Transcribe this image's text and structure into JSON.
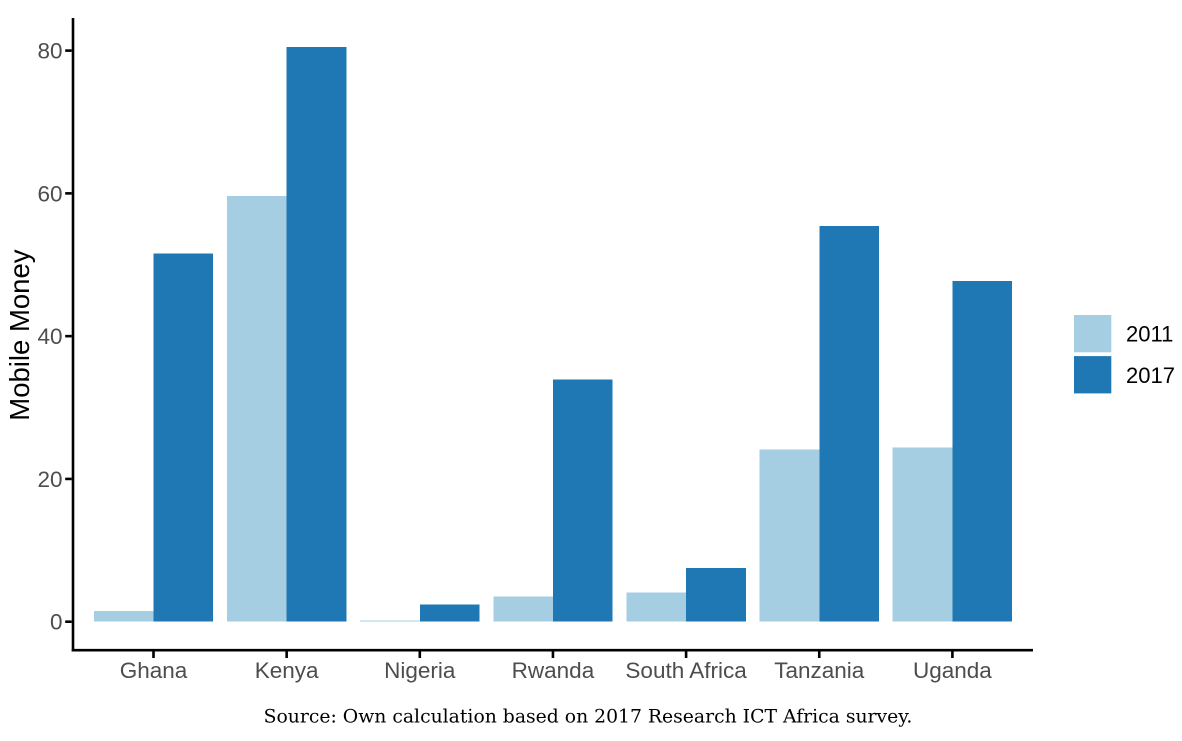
{
  "figure": {
    "background": "#ffffff",
    "caption": "Source: Own calculation based on 2017 Research ICT Africa survey."
  },
  "chart_data": {
    "type": "bar",
    "title": "",
    "xlabel": "",
    "ylabel": "Mobile Money",
    "categories": [
      "Ghana",
      "Kenya",
      "Nigeria",
      "Rwanda",
      "South Africa",
      "Tanzania",
      "Uganda"
    ],
    "series": [
      {
        "name": "2011",
        "color": "#A6CEE3",
        "values": [
          1.5,
          59.6,
          0.15,
          3.5,
          4.1,
          24.1,
          24.4
        ]
      },
      {
        "name": "2017",
        "color": "#1F78B4",
        "values": [
          51.6,
          80.5,
          2.4,
          33.9,
          7.5,
          55.4,
          47.7
        ]
      }
    ],
    "y_ticks": [
      0,
      20,
      40,
      60,
      80
    ],
    "ylim": [
      -4,
      84.6
    ],
    "grid": false,
    "legend_position": "right",
    "colors": {
      "axis_line": "#000000",
      "axis_text": "#4d4d4d",
      "axis_title": "#000000",
      "legend_text": "#000000",
      "caption_text": "#000000"
    }
  }
}
